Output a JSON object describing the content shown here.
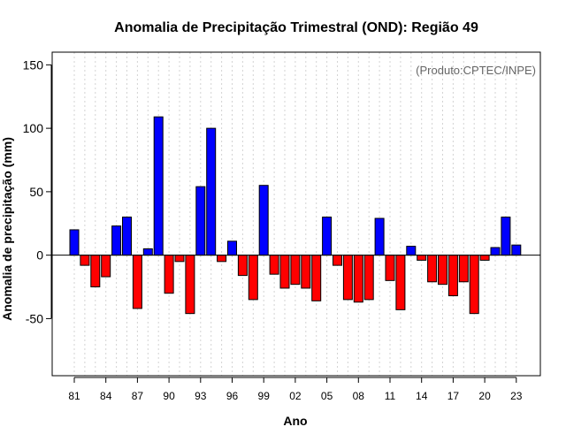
{
  "chart_data": {
    "type": "bar",
    "title": "Anomalia de Precipitação Trimestral (OND): Região 49",
    "xlabel": "Ano",
    "ylabel": "Anomalia de precipitação (mm)",
    "annotation": "(Produto:CPTEC/INPE)",
    "ylim": [
      -95,
      160
    ],
    "yticks": [
      -50,
      0,
      50,
      100,
      150
    ],
    "years": [
      1981,
      1982,
      1983,
      1984,
      1985,
      1986,
      1987,
      1988,
      1989,
      1990,
      1991,
      1992,
      1993,
      1994,
      1995,
      1996,
      1997,
      1998,
      1999,
      2000,
      2001,
      2002,
      2003,
      2004,
      2005,
      2006,
      2007,
      2008,
      2009,
      2010,
      2011,
      2012,
      2013,
      2014,
      2015,
      2016,
      2017,
      2018,
      2019,
      2020,
      2021,
      2022,
      2023
    ],
    "values": [
      20,
      -8,
      -25,
      -17,
      23,
      30,
      -42,
      5,
      109,
      -30,
      -5,
      -46,
      54,
      100,
      -5,
      11,
      -16,
      -35,
      55,
      -15,
      -26,
      -23,
      -26,
      -36,
      30,
      -8,
      -35,
      -37,
      -35,
      29,
      -20,
      -43,
      7,
      -4,
      -21,
      -23,
      -32,
      -21,
      -46,
      -4,
      6,
      30,
      8
    ],
    "xtick_labels": [
      {
        "index": 0,
        "label": "81"
      },
      {
        "index": 3,
        "label": "84"
      },
      {
        "index": 6,
        "label": "87"
      },
      {
        "index": 9,
        "label": "90"
      },
      {
        "index": 12,
        "label": "93"
      },
      {
        "index": 15,
        "label": "96"
      },
      {
        "index": 18,
        "label": "99"
      },
      {
        "index": 21,
        "label": "02"
      },
      {
        "index": 24,
        "label": "05"
      },
      {
        "index": 27,
        "label": "08"
      },
      {
        "index": 30,
        "label": "11"
      },
      {
        "index": 33,
        "label": "14"
      },
      {
        "index": 36,
        "label": "17"
      },
      {
        "index": 39,
        "label": "20"
      },
      {
        "index": 42,
        "label": "23"
      }
    ],
    "colors": {
      "positive": "#0000ff",
      "negative": "#ff0000",
      "grid": "#d3d3d3",
      "annotation": "#666666"
    },
    "grid": true
  }
}
